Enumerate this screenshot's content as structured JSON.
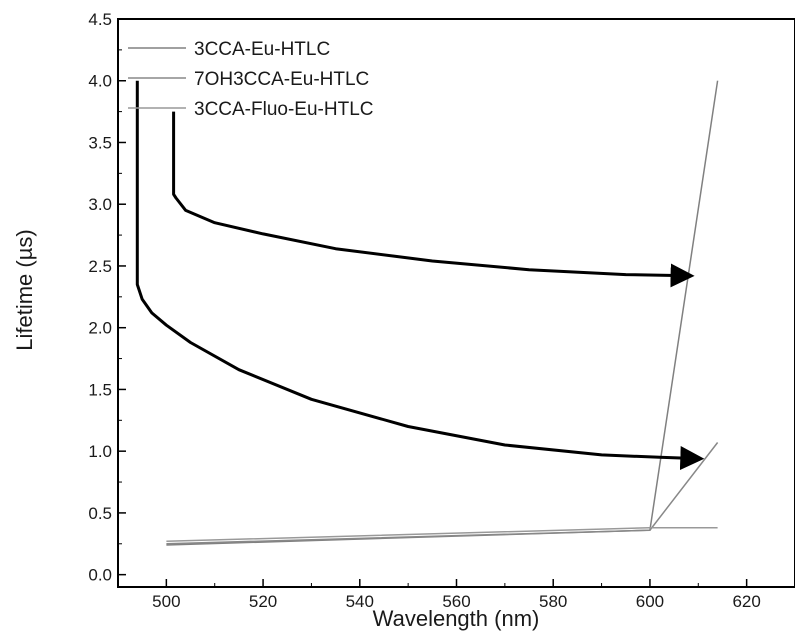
{
  "chart_data": {
    "type": "line",
    "xlabel": "Wavelength (nm)",
    "ylabel": "Lifetime (µs)",
    "xlim": [
      490,
      630
    ],
    "ylim": [
      -0.1,
      4.5
    ],
    "x_ticks": [
      500,
      520,
      540,
      560,
      580,
      600,
      620
    ],
    "x_tick_labels": [
      "500",
      "520",
      "540",
      "560",
      "580",
      "600",
      "620"
    ],
    "y_ticks": [
      0.0,
      0.5,
      1.0,
      1.5,
      2.0,
      2.5,
      3.0,
      3.5,
      4.0,
      4.5
    ],
    "y_tick_labels": [
      "0.0",
      "0.5",
      "1.0",
      "1.5",
      "2.0",
      "2.5",
      "3.0",
      "3.5",
      "4.0",
      "4.5"
    ],
    "grid": false,
    "legend_position": "top-left",
    "series": [
      {
        "name": "3CCA-Eu-HTLC",
        "color": "#808080",
        "x": [
          500,
          600,
          614
        ],
        "y": [
          0.24,
          0.36,
          4.0
        ]
      },
      {
        "name": "7OH3CCA-Eu-HTLC",
        "color": "#888888",
        "x": [
          500,
          600,
          614
        ],
        "y": [
          0.25,
          0.36,
          1.07
        ]
      },
      {
        "name": "3CCA-Fluo-Eu-HTLC",
        "color": "#999999",
        "x": [
          500,
          600,
          614
        ],
        "y": [
          0.27,
          0.38,
          0.38
        ]
      }
    ],
    "annotations": [
      {
        "type": "arrow",
        "color": "#000000",
        "x": [
          494,
          494,
          494,
          495,
          497,
          500,
          505,
          515,
          530,
          550,
          570,
          590,
          602,
          610
        ],
        "y": [
          4.0,
          2.45,
          2.35,
          2.23,
          2.12,
          2.02,
          1.88,
          1.66,
          1.42,
          1.2,
          1.05,
          0.97,
          0.95,
          0.94
        ]
      },
      {
        "type": "arrow",
        "color": "#000000",
        "x": [
          501.5,
          501.5,
          502,
          504,
          510,
          520,
          535,
          555,
          575,
          595,
          608
        ],
        "y": [
          3.75,
          3.08,
          3.05,
          2.95,
          2.85,
          2.76,
          2.64,
          2.54,
          2.47,
          2.43,
          2.42
        ]
      }
    ]
  }
}
